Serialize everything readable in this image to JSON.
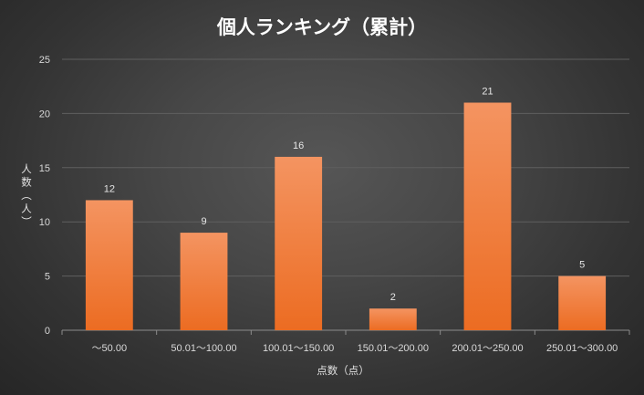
{
  "chart_data": {
    "type": "bar",
    "title": "個人ランキング（累計）",
    "xlabel": "点数（点）",
    "ylabel": "人数（人）",
    "categories": [
      "～50.00",
      "50.01～100.00",
      "100.01～150.00",
      "150.01～200.00",
      "200.01～250.00",
      "250.01～300.00"
    ],
    "values": [
      12,
      9,
      16,
      2,
      21,
      5
    ],
    "ylim": [
      0,
      25
    ],
    "yticks": [
      0,
      5,
      10,
      15,
      20,
      25
    ],
    "grid": true,
    "data_labels": true,
    "legend": "none",
    "colors": {
      "bar_top": "#f49461",
      "bar_bottom": "#ec6c22",
      "grid": "#5f5f5f",
      "axis": "#8c8c8c",
      "text": "#d9d9d9",
      "background": "#444444"
    }
  }
}
